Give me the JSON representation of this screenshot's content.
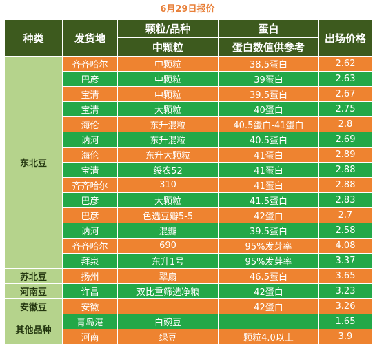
{
  "title": "6月29日报价",
  "headers": {
    "category": "种类",
    "origin": "发货地",
    "grain": "颗粒/品种",
    "grain_sub": "中颗粒",
    "protein": "蛋白",
    "protein_sub": "蛋白数值供参考",
    "price": "出场价格"
  },
  "groups": [
    {
      "name": "东北豆",
      "rows": [
        {
          "origin": "齐齐哈尔",
          "grain": "中颗粒",
          "protein": "38.5蛋白",
          "price": "2.62",
          "color": "orange"
        },
        {
          "origin": "巴彦",
          "grain": "中颗粒",
          "protein": "39蛋白",
          "price": "2.63",
          "color": "green"
        },
        {
          "origin": "宝清",
          "grain": "中颗粒",
          "protein": "39.5蛋白",
          "price": "2.67",
          "color": "orange"
        },
        {
          "origin": "宝清",
          "grain": "大颗粒",
          "protein": "40蛋白",
          "price": "2.75",
          "color": "green"
        },
        {
          "origin": "海伦",
          "grain": "东升混粒",
          "protein": "40.5蛋白-41蛋白",
          "price": "2.8",
          "color": "orange"
        },
        {
          "origin": "讷河",
          "grain": "东升混粒",
          "protein": "40.5蛋白",
          "price": "2.69",
          "color": "green"
        },
        {
          "origin": "海伦",
          "grain": "东升大颗粒",
          "protein": "41蛋白",
          "price": "2.89",
          "color": "orange"
        },
        {
          "origin": "宝清",
          "grain": "绥农52",
          "protein": "41蛋白",
          "price": "2.88",
          "color": "green"
        },
        {
          "origin": "齐齐哈尔",
          "grain": "310",
          "protein": "41蛋白",
          "price": "2.88",
          "color": "orange"
        },
        {
          "origin": "巴彦",
          "grain": "大颗粒",
          "protein": "41.5蛋白",
          "price": "2.83",
          "color": "green"
        },
        {
          "origin": "巴彦",
          "grain": "色选豆瓣5-5",
          "protein": "42蛋白",
          "price": "2.7",
          "color": "orange"
        },
        {
          "origin": "讷河",
          "grain": "混瓣",
          "protein": "39.5蛋白",
          "price": "2.58",
          "color": "green"
        },
        {
          "origin": "齐齐哈尔",
          "grain": "690",
          "protein": "95%发芽率",
          "price": "4.08",
          "color": "orange"
        },
        {
          "origin": "拜泉",
          "grain": "东升1号",
          "protein": "95%发芽率",
          "price": "3.37",
          "color": "green"
        }
      ]
    },
    {
      "name": "苏北豆",
      "rows": [
        {
          "origin": "扬州",
          "grain": "翠扇",
          "protein": "46.5蛋白",
          "price": "3.65",
          "color": "orange"
        }
      ]
    },
    {
      "name": "河南豆",
      "rows": [
        {
          "origin": "许昌",
          "grain": "双比重筛选净粮",
          "protein": "42蛋白",
          "price": "3.23",
          "color": "green"
        }
      ]
    },
    {
      "name": "安徽豆",
      "rows": [
        {
          "origin": "安徽",
          "grain": "",
          "protein": "42蛋白",
          "price": "3.26",
          "color": "orange"
        }
      ]
    },
    {
      "name": "其他品种",
      "rows": [
        {
          "origin": "青岛港",
          "grain": "白豌豆",
          "protein": "",
          "price": "1.65",
          "color": "green"
        },
        {
          "origin": "河南",
          "grain": "绿豆",
          "protein": "颗粒4.0以上",
          "price": "3.9",
          "color": "orange"
        }
      ]
    }
  ]
}
